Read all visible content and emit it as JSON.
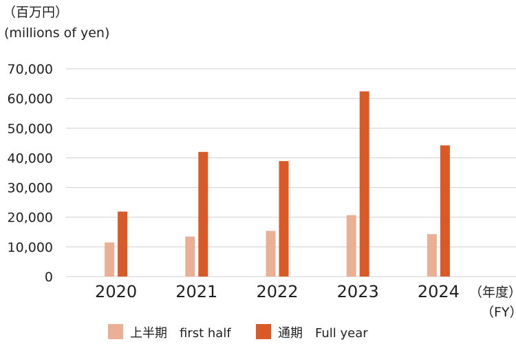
{
  "units": {
    "line1": "（百万円）",
    "line2": "(millions of yen)"
  },
  "xaxis_unit": {
    "line1": "（年度）",
    "line2": "（FY）"
  },
  "legend": [
    {
      "label": "上半期　first half",
      "series": 0
    },
    {
      "label": "通期　Full year",
      "series": 1
    }
  ],
  "colors": {
    "first_half": "#ebaf95",
    "full_year": "#d95a27",
    "grid": "#cfcfcf",
    "text": "#1f1f1f"
  },
  "chart_data": {
    "type": "bar",
    "title": "",
    "xlabel": "（年度）（FY）",
    "ylabel": "（百万円）(millions of yen)",
    "categories": [
      "2020",
      "2021",
      "2022",
      "2023",
      "2024"
    ],
    "series": [
      {
        "name": "上半期　first half",
        "values": [
          11500,
          13500,
          15400,
          20700,
          14300
        ]
      },
      {
        "name": "通期　Full year",
        "values": [
          21900,
          42000,
          38900,
          62400,
          44200
        ]
      }
    ],
    "ylim": [
      0,
      70000
    ],
    "yticks": [
      0,
      10000,
      20000,
      30000,
      40000,
      50000,
      60000,
      70000
    ],
    "ytick_labels": [
      "0",
      "10,000",
      "20,000",
      "30,000",
      "40,000",
      "50,000",
      "60,000",
      "70,000"
    ],
    "grid": true,
    "legend_position": "bottom"
  }
}
